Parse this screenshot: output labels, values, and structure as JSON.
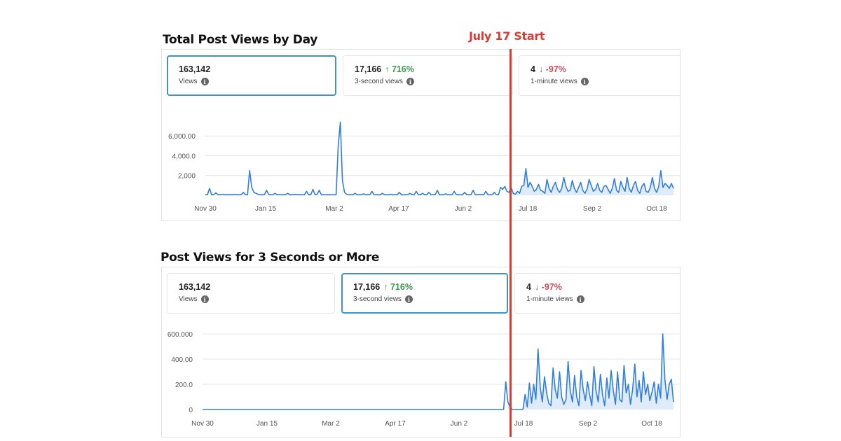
{
  "annotation": {
    "text": "July 17 Start",
    "color": "#d63b34"
  },
  "colors": {
    "line": "#2f7fdb",
    "fill": "#d7e6f7",
    "grid": "#e4e4e4",
    "selected_border": "#3d94c7",
    "up": "#3a9a4b",
    "down": "#d04a5a"
  },
  "charts": [
    {
      "heading": "Total Post Views by Day",
      "cards": [
        {
          "value": "163,142",
          "change": "",
          "label": "Views",
          "selected": true
        },
        {
          "value": "17,166",
          "change": "↑ 716%",
          "direction": "up",
          "label": "3-second views",
          "selected": false
        },
        {
          "value": "4",
          "change": "↓ -97%",
          "direction": "down",
          "label": "1-minute views",
          "selected": false
        }
      ]
    },
    {
      "heading": "Post Views for 3 Seconds or More",
      "cards": [
        {
          "value": "163,142",
          "change": "",
          "label": "Views",
          "selected": false
        },
        {
          "value": "17,166",
          "change": "↑ 716%",
          "direction": "up",
          "label": "3-second views",
          "selected": true
        },
        {
          "value": "4",
          "change": "↓ -97%",
          "direction": "down",
          "label": "1-minute views",
          "selected": false
        }
      ]
    }
  ],
  "chart_data": [
    {
      "type": "line",
      "title": "Total Post Views by Day",
      "xlabel": "",
      "ylabel": "",
      "x_ticks": [
        "Nov 30",
        "Jan 15",
        "Mar 2",
        "Apr 17",
        "Jun 2",
        "Jul 18",
        "Sep 2",
        "Oct 18"
      ],
      "y_ticks": [
        "6,000.00",
        "4,000.0",
        "2,000"
      ],
      "y_tick_values": [
        6000,
        4000,
        2000
      ],
      "ylim": [
        0,
        7500
      ],
      "grid": true,
      "annotation": {
        "text": "July 17 Start"
      },
      "series": [
        {
          "values": [
            60,
            60,
            700,
            60,
            60,
            250,
            60,
            60,
            100,
            60,
            60,
            60,
            60,
            60,
            100,
            60,
            60,
            60,
            300,
            60,
            60,
            2500,
            800,
            300,
            200,
            100,
            60,
            60,
            60,
            500,
            100,
            60,
            60,
            200,
            60,
            60,
            60,
            60,
            60,
            200,
            60,
            60,
            60,
            100,
            60,
            60,
            60,
            60,
            400,
            60,
            60,
            600,
            60,
            100,
            500,
            60,
            60,
            60,
            60,
            60,
            60,
            60,
            60,
            5000,
            7400,
            1500,
            300,
            100,
            60,
            60,
            60,
            200,
            60,
            60,
            60,
            150,
            60,
            60,
            60,
            400,
            60,
            60,
            60,
            60,
            200,
            60,
            60,
            60,
            100,
            60,
            60,
            60,
            300,
            60,
            60,
            60,
            60,
            200,
            60,
            60,
            400,
            60,
            60,
            200,
            60,
            60,
            300,
            60,
            60,
            60,
            500,
            60,
            60,
            60,
            150,
            60,
            60,
            60,
            400,
            60,
            60,
            60,
            60,
            300,
            60,
            60,
            60,
            500,
            60,
            60,
            100,
            60,
            60,
            400,
            60,
            60,
            60,
            300,
            60,
            60,
            800,
            600,
            900,
            400,
            300,
            800,
            200,
            100,
            400,
            200,
            900,
            1000,
            2700,
            800,
            1300,
            900,
            400,
            600,
            1100,
            500,
            400,
            200,
            1600,
            700,
            300,
            900,
            1300,
            600,
            300,
            700,
            1800,
            900,
            400,
            500,
            1500,
            700,
            300,
            800,
            1300,
            500,
            200,
            600,
            1600,
            1000,
            400,
            600,
            1200,
            500,
            300,
            900,
            1000,
            600,
            200,
            700,
            1700,
            500,
            300,
            1400,
            800,
            400,
            1800,
            700,
            300,
            1000,
            1400,
            500,
            200,
            900,
            1200,
            400,
            300,
            800,
            1800,
            700,
            300,
            900,
            2500,
            800,
            1200,
            1000,
            700,
            1200,
            700
          ]
        }
      ]
    },
    {
      "type": "line",
      "title": "Post Views for 3 Seconds or More",
      "xlabel": "",
      "ylabel": "",
      "x_ticks": [
        "Nov 30",
        "Jan 15",
        "Mar 2",
        "Apr 17",
        "Jun 2",
        "Jul 18",
        "Sep 2",
        "Oct 18"
      ],
      "y_ticks": [
        "600.000",
        "400.00",
        "200.0",
        "0"
      ],
      "y_tick_values": [
        600,
        400,
        200,
        0
      ],
      "ylim": [
        0,
        650
      ],
      "grid": true,
      "annotation": {
        "text": "July 17 Start"
      },
      "series": [
        {
          "values": [
            0,
            0,
            0,
            0,
            0,
            0,
            0,
            0,
            0,
            0,
            0,
            0,
            0,
            0,
            0,
            0,
            0,
            0,
            0,
            0,
            0,
            0,
            0,
            0,
            0,
            0,
            0,
            0,
            0,
            0,
            0,
            0,
            0,
            0,
            0,
            0,
            0,
            0,
            0,
            0,
            0,
            0,
            0,
            0,
            0,
            0,
            0,
            0,
            0,
            0,
            0,
            0,
            0,
            0,
            0,
            0,
            0,
            0,
            0,
            0,
            0,
            0,
            0,
            0,
            0,
            0,
            0,
            0,
            0,
            0,
            0,
            0,
            0,
            0,
            0,
            0,
            0,
            0,
            0,
            0,
            0,
            0,
            0,
            0,
            0,
            0,
            0,
            0,
            0,
            0,
            0,
            0,
            0,
            0,
            0,
            0,
            0,
            0,
            0,
            0,
            0,
            0,
            0,
            0,
            0,
            0,
            0,
            0,
            0,
            0,
            0,
            0,
            0,
            0,
            0,
            0,
            0,
            0,
            0,
            0,
            0,
            0,
            0,
            0,
            0,
            0,
            0,
            0,
            0,
            0,
            0,
            0,
            0,
            0,
            0,
            0,
            0,
            0,
            0,
            0,
            0,
            220,
            60,
            20,
            0,
            0,
            0,
            0,
            0,
            0,
            120,
            20,
            210,
            50,
            200,
            80,
            480,
            180,
            60,
            260,
            130,
            50,
            30,
            330,
            160,
            90,
            300,
            100,
            40,
            80,
            380,
            150,
            60,
            270,
            100,
            30,
            310,
            160,
            70,
            220,
            120,
            30,
            340,
            150,
            60,
            280,
            120,
            30,
            250,
            90,
            310,
            150,
            40,
            300,
            80,
            60,
            350,
            130,
            200,
            40,
            160,
            360,
            100,
            230,
            60,
            300,
            120,
            200,
            70,
            140,
            220,
            50,
            200,
            90,
            600,
            240,
            80,
            200,
            240,
            60
          ]
        }
      ]
    }
  ]
}
